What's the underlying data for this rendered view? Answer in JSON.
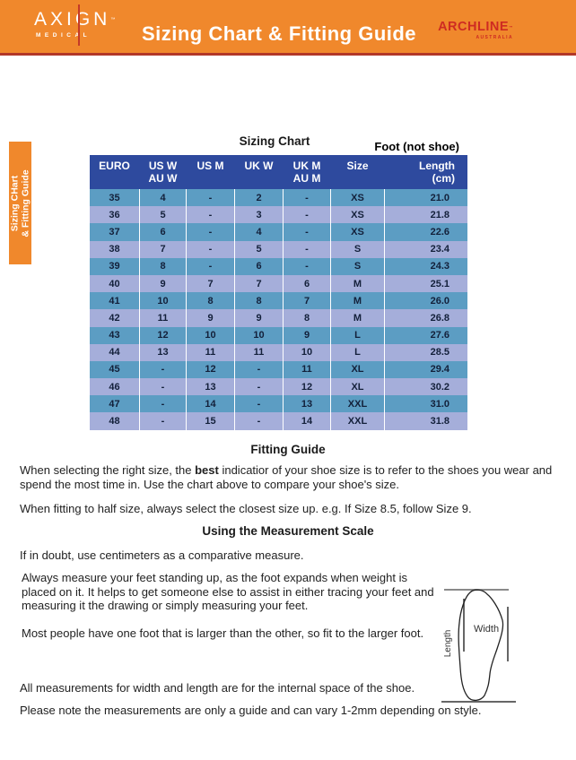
{
  "header": {
    "brand_left": {
      "name": "AXIGN",
      "tm": "™",
      "sub": "MEDICAL"
    },
    "title": "Sizing Chart & Fitting Guide",
    "brand_right": {
      "name": "ARCHLINE",
      "tm": "™",
      "sub": "AUSTRALIA"
    }
  },
  "side_tab": {
    "line1": "Sizing CHart",
    "line2": "& Fitting Guide"
  },
  "sizing_chart": {
    "title": "Sizing Chart",
    "foot_note": "Foot (not shoe)",
    "columns": [
      {
        "line1": "EURO",
        "line2": ""
      },
      {
        "line1": "US W",
        "line2": "AU W"
      },
      {
        "line1": "US M",
        "line2": ""
      },
      {
        "line1": "UK W",
        "line2": ""
      },
      {
        "line1": "UK M",
        "line2": "AU M"
      },
      {
        "line1": "Size",
        "line2": ""
      },
      {
        "line1": "Length",
        "line2": "(cm)"
      }
    ],
    "rows": [
      {
        "cells": [
          "35",
          "4",
          "-",
          "2",
          "-",
          "XS",
          "21.0"
        ]
      },
      {
        "cells": [
          "36",
          "5",
          "-",
          "3",
          "-",
          "XS",
          "21.8"
        ]
      },
      {
        "cells": [
          "37",
          "6",
          "-",
          "4",
          "-",
          "XS",
          "22.6"
        ]
      },
      {
        "cells": [
          "38",
          "7",
          "-",
          "5",
          "-",
          "S",
          "23.4"
        ]
      },
      {
        "cells": [
          "39",
          "8",
          "-",
          "6",
          "-",
          "S",
          "24.3"
        ]
      },
      {
        "cells": [
          "40",
          "9",
          "7",
          "7",
          "6",
          "M",
          "25.1"
        ]
      },
      {
        "cells": [
          "41",
          "10",
          "8",
          "8",
          "7",
          "M",
          "26.0"
        ]
      },
      {
        "cells": [
          "42",
          "11",
          "9",
          "9",
          "8",
          "M",
          "26.8"
        ]
      },
      {
        "cells": [
          "43",
          "12",
          "10",
          "10",
          "9",
          "L",
          "27.6"
        ]
      },
      {
        "cells": [
          "44",
          "13",
          "11",
          "11",
          "10",
          "L",
          "28.5"
        ]
      },
      {
        "cells": [
          "45",
          "-",
          "12",
          "-",
          "11",
          "XL",
          "29.4"
        ]
      },
      {
        "cells": [
          "46",
          "-",
          "13",
          "-",
          "12",
          "XL",
          "30.2"
        ]
      },
      {
        "cells": [
          "47",
          "-",
          "14",
          "-",
          "13",
          "XXL",
          "31.0"
        ]
      },
      {
        "cells": [
          "48",
          "-",
          "15",
          "-",
          "14",
          "XXL",
          "31.8"
        ]
      }
    ]
  },
  "fitting_guide": {
    "heading": "Fitting Guide",
    "p1_before": "When selecting the right size, the ",
    "p1_bold": "best",
    "p1_after": " indicatior of your shoe size is to refer to the shoes you wear and spend the most time in. Use the chart above to compare your shoe's size.",
    "p2": "When fitting to half size, always select the closest size up. e.g. If Size 8.5, follow Size 9."
  },
  "measurement_scale": {
    "heading": "Using the Measurement Scale",
    "p1": "If in doubt, use centimeters as a comparative measure.",
    "p2": "Always measure your feet standing up, as the foot expands when weight is placed on it. It helps to get someone else to assist in either tracing your feet and measuring it the drawing or simply measuring your feet.",
    "p3": "Most people have one foot that is larger than the other, so fit to the larger foot.",
    "p4": "All measurements for width and length are for the internal space of the shoe.",
    "p5": "Please note the measurements are only a guide and can vary 1-2mm depending on style."
  },
  "diagram": {
    "width_label": "Width",
    "length_label": "Length"
  },
  "colors": {
    "header_orange": "#F0882C",
    "header_underline_red": "#B23728",
    "logo_red": "#CE2B22",
    "table_header_navy": "#2E4A9E",
    "row_blue": "#5C9DC3",
    "row_periwinkle": "#A5AEDA"
  }
}
